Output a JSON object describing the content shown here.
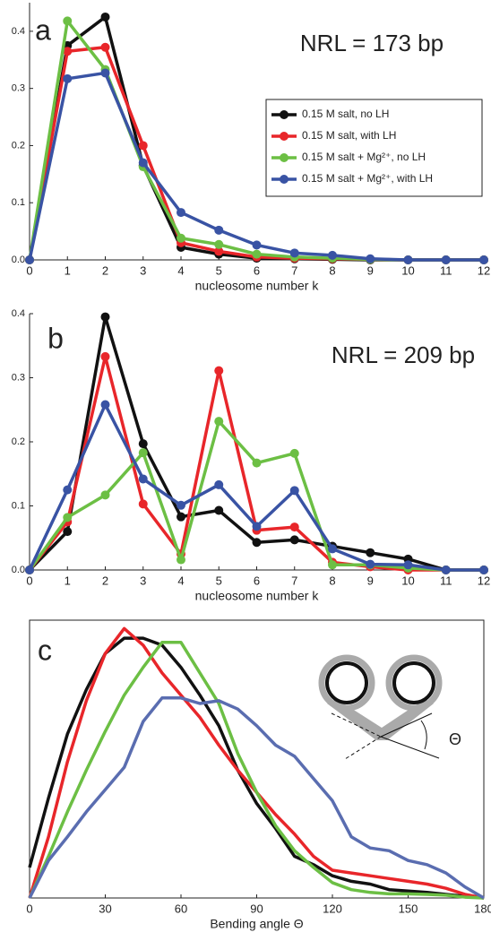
{
  "chart_data": [
    {
      "type": "line",
      "panel_label": "a",
      "annotation": "NRL = 173 bp",
      "x_label": "nucleosome number k",
      "x": [
        0,
        1,
        2,
        3,
        4,
        5,
        6,
        7,
        8,
        9,
        10,
        11,
        12
      ],
      "xlim": [
        0,
        12
      ],
      "xticks": [
        0,
        1,
        2,
        3,
        4,
        5,
        6,
        7,
        8,
        9,
        10,
        11,
        12
      ],
      "ylim": [
        0,
        0.45
      ],
      "yticks": [
        {
          "value": 0,
          "label": "0.0"
        },
        0.1,
        0.2,
        0.3,
        0.4
      ],
      "markers": true,
      "legend": "upper right",
      "series": [
        {
          "name": "0.15 M salt,  no LH",
          "color": "#111111",
          "values": [
            0,
            0.375,
            0.425,
            0.165,
            0.022,
            0.01,
            0.003,
            0.002,
            0.001,
            0,
            0,
            0,
            0
          ]
        },
        {
          "name": "0.15 M salt,  with LH",
          "color": "#e8262a",
          "values": [
            0,
            0.365,
            0.372,
            0.2,
            0.03,
            0.015,
            0.005,
            0.003,
            0.002,
            0.001,
            0,
            0,
            0
          ]
        },
        {
          "name": "0.15 M salt + Mg²⁺,  no LH",
          "color": "#6cbf44",
          "values": [
            0,
            0.418,
            0.333,
            0.163,
            0.038,
            0.027,
            0.01,
            0.005,
            0.003,
            0.001,
            0,
            0,
            0
          ]
        },
        {
          "name": "0.15 M salt + Mg²⁺, with LH",
          "color": "#3953a4",
          "values": [
            0,
            0.317,
            0.327,
            0.17,
            0.083,
            0.052,
            0.026,
            0.012,
            0.008,
            0.002,
            0,
            0,
            0
          ]
        }
      ]
    },
    {
      "type": "line",
      "panel_label": "b",
      "annotation": "NRL = 209 bp",
      "x_label": "nucleosome number k",
      "x": [
        0,
        1,
        2,
        3,
        4,
        5,
        6,
        7,
        8,
        9,
        10,
        11,
        12
      ],
      "xlim": [
        0,
        12
      ],
      "xticks": [
        0,
        1,
        2,
        3,
        4,
        5,
        6,
        7,
        8,
        9,
        10,
        11,
        12
      ],
      "ylim": [
        0,
        0.4
      ],
      "yticks": [
        {
          "value": 0,
          "label": "0.0"
        },
        0.1,
        0.2,
        0.3,
        0.4
      ],
      "markers": true,
      "series": [
        {
          "color": "#111111",
          "values": [
            0,
            0.06,
            0.395,
            0.197,
            0.083,
            0.093,
            0.043,
            0.047,
            0.037,
            0.027,
            0.017,
            0,
            0
          ]
        },
        {
          "color": "#e8262a",
          "values": [
            0,
            0.075,
            0.333,
            0.103,
            0.025,
            0.311,
            0.062,
            0.067,
            0.012,
            0.005,
            0,
            0,
            0
          ]
        },
        {
          "color": "#6cbf44",
          "values": [
            0,
            0.082,
            0.117,
            0.183,
            0.016,
            0.232,
            0.167,
            0.182,
            0.008,
            0.008,
            0.003,
            0,
            0
          ]
        },
        {
          "color": "#3953a4",
          "values": [
            0,
            0.125,
            0.258,
            0.142,
            0.101,
            0.133,
            0.068,
            0.124,
            0.033,
            0.009,
            0.008,
            0,
            0
          ]
        }
      ]
    },
    {
      "type": "line",
      "panel_label": "c",
      "x_label": "Bending angle  Θ",
      "inset_label": "Θ",
      "x": [
        0,
        7.5,
        15,
        22.5,
        30,
        37.5,
        45,
        52.5,
        60,
        67.5,
        75,
        82.5,
        90,
        97.5,
        105,
        112.5,
        120,
        127.5,
        135,
        142.5,
        150,
        157.5,
        165,
        172.5,
        180
      ],
      "xlim": [
        0,
        180
      ],
      "xticks": [
        0,
        30,
        60,
        90,
        120,
        150,
        180
      ],
      "ylim": [
        0,
        1
      ],
      "markers": false,
      "series": [
        {
          "color": "#111111",
          "values": [
            0.11,
            0.36,
            0.59,
            0.75,
            0.88,
            0.935,
            0.935,
            0.91,
            0.83,
            0.73,
            0.62,
            0.46,
            0.34,
            0.25,
            0.15,
            0.12,
            0.08,
            0.06,
            0.05,
            0.03,
            0.025,
            0.02,
            0.013,
            0.006,
            0
          ]
        },
        {
          "color": "#e8262a",
          "values": [
            0,
            0.22,
            0.49,
            0.71,
            0.88,
            0.97,
            0.91,
            0.81,
            0.73,
            0.65,
            0.55,
            0.46,
            0.38,
            0.3,
            0.23,
            0.15,
            0.1,
            0.09,
            0.08,
            0.07,
            0.06,
            0.05,
            0.035,
            0.013,
            0
          ]
        },
        {
          "color": "#6cbf44",
          "values": [
            0,
            0.15,
            0.31,
            0.46,
            0.6,
            0.73,
            0.83,
            0.92,
            0.92,
            0.81,
            0.7,
            0.52,
            0.38,
            0.26,
            0.17,
            0.11,
            0.055,
            0.03,
            0.02,
            0.015,
            0.015,
            0.013,
            0.01,
            0.003,
            0
          ]
        },
        {
          "color": "#5a6db0",
          "values": [
            0,
            0.135,
            0.22,
            0.31,
            0.39,
            0.47,
            0.635,
            0.72,
            0.72,
            0.7,
            0.71,
            0.68,
            0.62,
            0.55,
            0.51,
            0.43,
            0.35,
            0.22,
            0.18,
            0.17,
            0.135,
            0.12,
            0.09,
            0.04,
            0
          ]
        }
      ]
    }
  ]
}
